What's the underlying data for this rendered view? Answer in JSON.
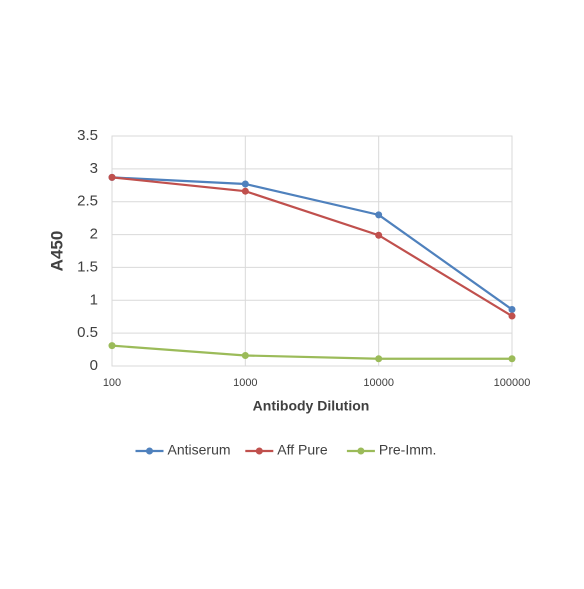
{
  "chart_data": {
    "type": "line",
    "x_label": "Antibody Dilution",
    "y_label": "A450",
    "x": [
      100,
      1000,
      10000,
      100000
    ],
    "xlim": [
      100,
      100000
    ],
    "xticks": [
      100,
      1000,
      10000,
      100000
    ],
    "xscale": "log",
    "ylim": [
      0,
      3.5
    ],
    "yticks": [
      0,
      0.5,
      1,
      1.5,
      2,
      2.5,
      3,
      3.5
    ],
    "grid": true,
    "legend": "bottom",
    "series": [
      {
        "name": "Antiserum",
        "color": "#4f81bd",
        "values": [
          2.87,
          2.77,
          2.3,
          0.86
        ]
      },
      {
        "name": "Aff Pure",
        "color": "#c0504d",
        "values": [
          2.87,
          2.66,
          1.99,
          0.76
        ]
      },
      {
        "name": "Pre-Imm.",
        "color": "#9bbb59",
        "values": [
          0.31,
          0.16,
          0.11,
          0.11
        ]
      }
    ]
  }
}
